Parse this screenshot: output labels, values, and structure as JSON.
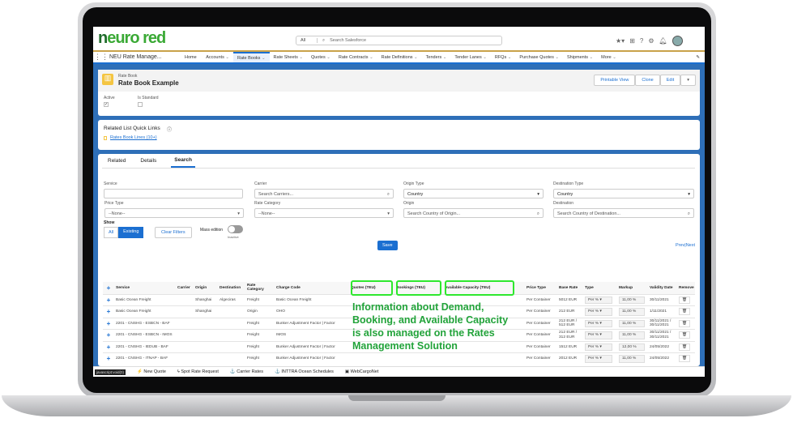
{
  "header": {
    "logo": "neuro red",
    "search_scope": "All",
    "search_placeholder": "Search Salesforce"
  },
  "nav": {
    "app_name": "NEU Rate Manage...",
    "items": [
      "Home",
      "Accounts",
      "Rate Books",
      "Rate Sheets",
      "Quotes",
      "Rate Contracts",
      "Rate Definitions",
      "Tenders",
      "Tender Lanes",
      "RFQs",
      "Purchase Quotes",
      "Shipments",
      "More"
    ],
    "active": "Rate Books"
  },
  "record": {
    "object": "Rate Book",
    "name": "Rate Book Example",
    "buttons": [
      "Printable View",
      "Clone",
      "Edit"
    ],
    "fields": [
      {
        "label": "Active",
        "checked": true
      },
      {
        "label": "Is Standard",
        "checked": false
      }
    ]
  },
  "quick_links": {
    "title": "Related List Quick Links",
    "link": "Rates Book Lines (10+)"
  },
  "tabs": [
    "Related",
    "Details",
    "Search"
  ],
  "active_tab": "Search",
  "filters": {
    "service_label": "Service",
    "carrier_label": "Carrier",
    "carrier_placeholder": "Search Carriers...",
    "origin_type_label": "Origin Type",
    "origin_type_value": "Country",
    "destination_type_label": "Destination Type",
    "destination_type_value": "Country",
    "price_type_label": "Price Type",
    "price_type_value": "--None--",
    "rate_category_label": "Rate Category",
    "rate_category_value": "--None--",
    "origin_label": "Origin",
    "origin_placeholder": "Search Country of Origin...",
    "destination_label": "Destination",
    "destination_placeholder": "Search Country of Destination...",
    "show_label": "Show",
    "show_all": "All",
    "show_existing": "Existing",
    "clear_filters": "Clear Filters",
    "mass_edition": "Mass edition",
    "mass_edition_state": "Inactive",
    "save": "Save",
    "pager": "Prev|Next"
  },
  "table": {
    "columns": [
      "Service",
      "Carrier",
      "Origin",
      "Destination",
      "Rate Category",
      "Charge Code",
      "Quotes (TEU)",
      "Bookings (TEU)",
      "Available Capacity (TEU)",
      "Price Type",
      "Base Rate",
      "Type",
      "Markup",
      "Validity Date",
      "Remove"
    ],
    "rows": [
      [
        "Basic Ocean Freight",
        "",
        "Shanghai",
        "Algeciras",
        "Freight",
        "Basic Ocean Freight",
        "",
        "",
        "",
        "Per Container",
        "5012 EUR",
        "Per %",
        "11,00 %",
        "30/11/2021"
      ],
      [
        "Basic Ocean Freight",
        "",
        "Shanghai",
        "",
        "Origin",
        "OHO",
        "",
        "",
        "",
        "Per Container",
        "212 EUR",
        "Per %",
        "11,00 %",
        "1/11/2021"
      ],
      [
        "2201 - CNSHG - ESBCN - BAF",
        "",
        "",
        "",
        "Freight",
        "Bunker Adjustment Factor | Factor",
        "",
        "",
        "",
        "Per Container",
        "212 EUR / 512 EUR",
        "Per %",
        "11,00 %",
        "30/11/2021 / 30/11/2021"
      ],
      [
        "2201 - CNSHG - ESBCN - IMOS",
        "",
        "",
        "",
        "Freight",
        "IMOS",
        "",
        "",
        "",
        "Per Container",
        "212 EUR / 312 EUR",
        "Per %",
        "11,00 %",
        "30/11/2021 / 30/11/2021"
      ],
      [
        "2201 - CNSHG - IEDUB - BAF",
        "",
        "",
        "",
        "Freight",
        "Bunker Adjustment Factor | Factor",
        "",
        "",
        "",
        "Per Container",
        "1512 EUR",
        "Per %",
        "12,00 %",
        "24/05/2022"
      ],
      [
        "2201 - CNSHG - ITNAP - BAF",
        "",
        "",
        "",
        "Freight",
        "Bunker Adjustment Factor | Factor",
        "",
        "",
        "",
        "Per Container",
        "2012 EUR",
        "Per %",
        "11,00 %",
        "24/05/2022"
      ]
    ]
  },
  "callout": "Information about Demand, Booking, and Available Capacity is also managed on the Rates Management Solution",
  "utility_bar": {
    "items": [
      "New Quote",
      "Spot Rate Request",
      "Carrier Rates",
      "INTTRA Ocean Schedules",
      "WebCargoNet"
    ],
    "status": "javascript:void(0)"
  },
  "colors": {
    "brand": "#1b6fd1",
    "highlight": "#2ee82e",
    "callout": "#22a33a"
  }
}
